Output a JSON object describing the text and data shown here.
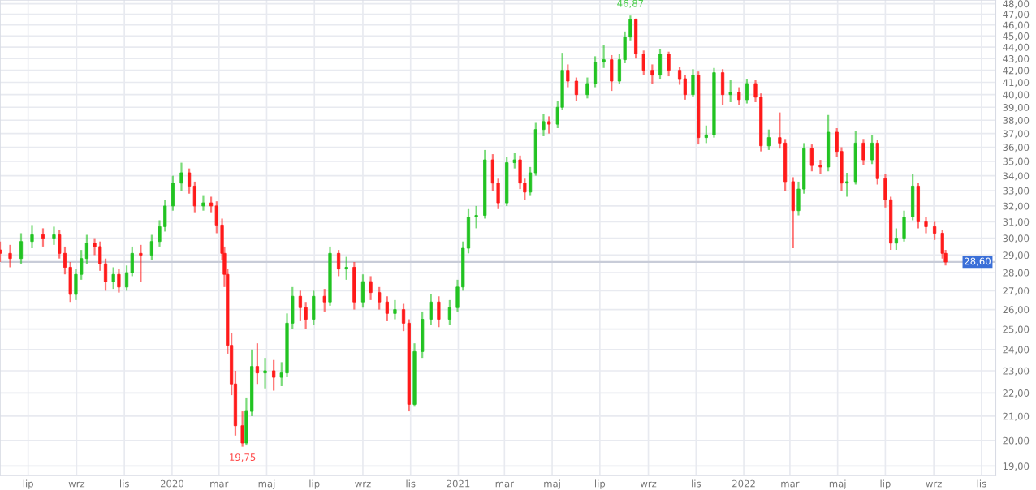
{
  "chart_data": {
    "type": "candlestick",
    "xlim": [
      "2019-05-26",
      "2022-11-19"
    ],
    "ylim": [
      18.65,
      48.36
    ],
    "log": true,
    "grid": true,
    "xticks": [
      {
        "value": "2019-07-01",
        "label": "lip"
      },
      {
        "value": "2019-09-01",
        "label": "wrz"
      },
      {
        "value": "2019-11-01",
        "label": "lis"
      },
      {
        "value": "2020-01-01",
        "label": "2020"
      },
      {
        "value": "2020-03-01",
        "label": "mar"
      },
      {
        "value": "2020-05-01",
        "label": "maj"
      },
      {
        "value": "2020-07-01",
        "label": "lip"
      },
      {
        "value": "2020-09-01",
        "label": "wrz"
      },
      {
        "value": "2020-11-01",
        "label": "lis"
      },
      {
        "value": "2021-01-01",
        "label": "2021"
      },
      {
        "value": "2021-03-01",
        "label": "mar"
      },
      {
        "value": "2021-05-01",
        "label": "maj"
      },
      {
        "value": "2021-07-01",
        "label": "lip"
      },
      {
        "value": "2021-09-01",
        "label": "wrz"
      },
      {
        "value": "2021-11-01",
        "label": "lis"
      },
      {
        "value": "2022-01-01",
        "label": "2022"
      },
      {
        "value": "2022-03-01",
        "label": "mar"
      },
      {
        "value": "2022-05-01",
        "label": "maj"
      },
      {
        "value": "2022-07-01",
        "label": "lip"
      },
      {
        "value": "2022-09-01",
        "label": "wrz"
      },
      {
        "value": "2022-11-01",
        "label": "lis"
      }
    ],
    "yticks": [
      {
        "value": 19,
        "label": "19,00"
      },
      {
        "value": 20,
        "label": "20,00"
      },
      {
        "value": 21,
        "label": "21,00"
      },
      {
        "value": 22,
        "label": "22,00"
      },
      {
        "value": 23,
        "label": "23,00"
      },
      {
        "value": 24,
        "label": "24,00"
      },
      {
        "value": 25,
        "label": "25,00"
      },
      {
        "value": 26,
        "label": "26,00"
      },
      {
        "value": 27,
        "label": "27,00"
      },
      {
        "value": 28,
        "label": "28,00"
      },
      {
        "value": 29,
        "label": "29,00"
      },
      {
        "value": 30,
        "label": "30,00"
      },
      {
        "value": 31,
        "label": "31,00"
      },
      {
        "value": 32,
        "label": "32,00"
      },
      {
        "value": 33,
        "label": "33,00"
      },
      {
        "value": 34,
        "label": "34,00"
      },
      {
        "value": 35,
        "label": "35,00"
      },
      {
        "value": 36,
        "label": "36,00"
      },
      {
        "value": 37,
        "label": "37,00"
      },
      {
        "value": 38,
        "label": "38,00"
      },
      {
        "value": 39,
        "label": "39,00"
      },
      {
        "value": 40,
        "label": "40,00"
      },
      {
        "value": 41,
        "label": "41,00"
      },
      {
        "value": 42,
        "label": "42,00"
      },
      {
        "value": 43,
        "label": "43,00"
      },
      {
        "value": 44,
        "label": "44,00"
      },
      {
        "value": 45,
        "label": "45,00"
      },
      {
        "value": 46,
        "label": "46,00"
      },
      {
        "value": 47,
        "label": "47,00"
      },
      {
        "value": 48,
        "label": "48,00"
      }
    ],
    "ref_lines": [
      {
        "axis": "y",
        "value": 28.6,
        "label": "28,60",
        "color": "#c8ccd8"
      }
    ],
    "annotations": [
      {
        "text": "46,87",
        "x": "2021-08-09",
        "y": 46.87
      },
      {
        "text": "19,75",
        "x": "2020-03-31",
        "y": 19.75
      }
    ],
    "series": [
      {
        "color": "#22c322",
        "x": [
          "2019-06-22",
          "2019-07-06",
          "2019-08-03",
          "2019-08-31",
          "2019-09-07",
          "2019-09-14",
          "2019-10-18",
          "2019-11-04",
          "2019-11-11",
          "2019-12-06",
          "2019-12-16",
          "2019-12-23",
          "2020-01-02",
          "2020-01-13",
          "2020-02-10",
          "2020-04-05",
          "2020-04-12",
          "2020-04-29",
          "2020-05-20",
          "2020-05-27",
          "2020-06-03",
          "2020-06-30",
          "2020-07-21",
          "2020-08-11",
          "2020-09-01",
          "2020-10-12",
          "2020-11-06",
          "2020-11-16",
          "2020-11-27",
          "2020-12-21",
          "2020-12-31",
          "2021-01-07",
          "2021-01-14",
          "2021-01-24",
          "2021-02-04",
          "2021-03-04",
          "2021-03-14",
          "2021-04-03",
          "2021-04-10",
          "2021-04-20",
          "2021-05-08",
          "2021-05-14",
          "2021-06-15",
          "2021-06-25",
          "2021-07-06",
          "2021-07-26",
          "2021-08-02",
          "2021-08-09",
          "2021-09-16",
          "2021-10-28",
          "2021-11-14",
          "2021-11-24",
          "2021-12-15",
          "2022-01-05",
          "2022-02-02",
          "2022-03-12",
          "2022-03-19",
          "2022-04-19",
          "2022-05-13",
          "2022-05-24",
          "2022-06-14",
          "2022-07-15",
          "2022-07-25",
          "2022-08-05"
        ],
        "ohlc": [
          [
            28.8,
            30.3,
            28.5,
            29.8
          ],
          [
            29.8,
            30.8,
            29.4,
            30.2
          ],
          [
            30.0,
            30.7,
            29.6,
            30.2
          ],
          [
            26.8,
            28.2,
            26.5,
            27.9
          ],
          [
            27.9,
            29.3,
            27.6,
            28.8
          ],
          [
            28.8,
            30.2,
            28.5,
            29.7
          ],
          [
            27.5,
            28.3,
            27.1,
            27.9
          ],
          [
            27.2,
            28.4,
            27.0,
            28.0
          ],
          [
            28.0,
            29.5,
            27.8,
            29.1
          ],
          [
            29.0,
            30.2,
            28.7,
            29.8
          ],
          [
            29.8,
            31.1,
            29.5,
            30.7
          ],
          [
            30.7,
            32.4,
            30.4,
            32.0
          ],
          [
            32.0,
            34.0,
            31.7,
            33.5
          ],
          [
            33.5,
            34.9,
            33.0,
            34.2
          ],
          [
            32.0,
            32.7,
            31.7,
            32.2
          ],
          [
            19.9,
            21.8,
            19.8,
            21.2
          ],
          [
            21.2,
            24.0,
            21.0,
            23.2
          ],
          [
            22.9,
            23.6,
            22.2,
            23.0
          ],
          [
            22.7,
            23.4,
            22.3,
            22.9
          ],
          [
            22.9,
            25.8,
            22.7,
            25.3
          ],
          [
            25.3,
            27.2,
            25.0,
            26.7
          ],
          [
            25.5,
            27.0,
            25.2,
            26.7
          ],
          [
            26.4,
            29.5,
            26.2,
            29.1
          ],
          [
            28.2,
            28.9,
            27.6,
            28.3
          ],
          [
            26.4,
            27.9,
            26.1,
            27.5
          ],
          [
            25.8,
            26.5,
            25.5,
            26.0
          ],
          [
            21.5,
            24.3,
            21.4,
            23.9
          ],
          [
            23.9,
            25.9,
            23.6,
            25.5
          ],
          [
            25.5,
            26.8,
            25.2,
            26.4
          ],
          [
            25.5,
            26.5,
            25.2,
            26.1
          ],
          [
            26.1,
            27.6,
            25.9,
            27.2
          ],
          [
            27.2,
            29.8,
            27.0,
            29.4
          ],
          [
            29.4,
            31.8,
            29.1,
            31.3
          ],
          [
            31.3,
            32.0,
            30.6,
            31.4
          ],
          [
            31.4,
            35.8,
            31.2,
            35.1
          ],
          [
            32.2,
            35.3,
            32.0,
            34.9
          ],
          [
            34.9,
            35.6,
            34.5,
            35.1
          ],
          [
            32.9,
            34.6,
            32.7,
            34.2
          ],
          [
            34.2,
            37.8,
            34.0,
            37.3
          ],
          [
            37.3,
            38.5,
            36.8,
            37.9
          ],
          [
            37.7,
            39.5,
            37.4,
            39.0
          ],
          [
            39.0,
            43.5,
            38.8,
            42.0
          ],
          [
            40.0,
            41.4,
            39.7,
            40.9
          ],
          [
            40.9,
            43.2,
            40.6,
            42.7
          ],
          [
            42.7,
            44.2,
            42.2,
            42.9
          ],
          [
            41.1,
            43.4,
            40.9,
            42.9
          ],
          [
            42.9,
            45.4,
            42.6,
            44.9
          ],
          [
            44.9,
            46.87,
            44.6,
            46.5
          ],
          [
            41.6,
            43.8,
            41.3,
            43.4
          ],
          [
            40.0,
            42.1,
            39.8,
            41.6
          ],
          [
            36.7,
            37.6,
            36.3,
            36.9
          ],
          [
            36.9,
            42.2,
            36.7,
            41.8
          ],
          [
            40.0,
            41.2,
            39.4,
            40.2
          ],
          [
            39.6,
            41.3,
            39.3,
            40.9
          ],
          [
            36.1,
            37.3,
            35.8,
            36.7
          ],
          [
            31.7,
            33.6,
            31.4,
            33.1
          ],
          [
            33.1,
            36.3,
            32.8,
            35.9
          ],
          [
            34.6,
            38.4,
            34.3,
            37.1
          ],
          [
            33.5,
            34.2,
            32.6,
            33.6
          ],
          [
            33.6,
            37.2,
            33.4,
            36.3
          ],
          [
            35.1,
            36.9,
            34.8,
            36.3
          ],
          [
            29.7,
            30.6,
            29.3,
            30.0
          ],
          [
            30.0,
            31.7,
            29.8,
            31.3
          ],
          [
            31.3,
            34.1,
            31.1,
            33.3
          ]
        ]
      },
      {
        "color": "#ff1a1a",
        "x": [
          "2019-05-26",
          "2019-06-08",
          "2019-07-20",
          "2019-08-10",
          "2019-08-17",
          "2019-08-24",
          "2019-09-24",
          "2019-10-01",
          "2019-10-08",
          "2019-10-25",
          "2019-11-22",
          "2020-01-23",
          "2020-01-30",
          "2020-02-20",
          "2020-02-27",
          "2020-03-05",
          "2020-03-08",
          "2020-03-12",
          "2020-03-17",
          "2020-03-22",
          "2020-03-31",
          "2020-04-19",
          "2020-05-10",
          "2020-06-13",
          "2020-06-20",
          "2020-07-14",
          "2020-08-01",
          "2020-08-21",
          "2020-09-11",
          "2020-09-22",
          "2020-10-02",
          "2020-10-23",
          "2020-10-30",
          "2020-12-07",
          "2021-02-14",
          "2021-02-21",
          "2021-03-21",
          "2021-03-27",
          "2021-04-27",
          "2021-05-21",
          "2021-06-01",
          "2021-07-16",
          "2021-08-16",
          "2021-08-26",
          "2021-09-06",
          "2021-09-27",
          "2021-10-11",
          "2021-10-18",
          "2021-11-04",
          "2021-12-05",
          "2021-12-26",
          "2022-01-16",
          "2022-01-23",
          "2022-02-16",
          "2022-02-23",
          "2022-03-05",
          "2022-03-29",
          "2022-04-09",
          "2022-04-30",
          "2022-05-06",
          "2022-06-03",
          "2022-06-21",
          "2022-07-01",
          "2022-07-08",
          "2022-08-12",
          "2022-08-22",
          "2022-09-02",
          "2022-09-12",
          "2022-09-16"
        ],
        "ohlc": [
          [
            29.3,
            29.8,
            28.6,
            29.1
          ],
          [
            29.1,
            29.6,
            28.3,
            28.8
          ],
          [
            30.2,
            30.6,
            29.5,
            30.0
          ],
          [
            30.2,
            30.5,
            28.8,
            29.1
          ],
          [
            29.1,
            29.5,
            27.9,
            28.3
          ],
          [
            28.3,
            28.6,
            26.4,
            26.8
          ],
          [
            29.7,
            30.0,
            29.0,
            29.5
          ],
          [
            29.5,
            29.8,
            28.1,
            28.5
          ],
          [
            28.5,
            28.8,
            27.0,
            27.5
          ],
          [
            27.9,
            28.2,
            26.9,
            27.2
          ],
          [
            29.1,
            29.6,
            27.5,
            29.0
          ],
          [
            34.2,
            34.5,
            32.8,
            33.3
          ],
          [
            33.3,
            33.6,
            31.6,
            32.0
          ],
          [
            32.2,
            32.6,
            31.6,
            32.0
          ],
          [
            32.0,
            32.3,
            30.3,
            30.8
          ],
          [
            30.8,
            31.2,
            28.7,
            29.1
          ],
          [
            29.1,
            29.5,
            27.2,
            27.9
          ],
          [
            27.9,
            28.2,
            23.8,
            24.2
          ],
          [
            24.2,
            24.8,
            21.9,
            22.4
          ],
          [
            22.4,
            23.0,
            20.2,
            20.6
          ],
          [
            20.6,
            21.2,
            19.75,
            19.9
          ],
          [
            23.2,
            24.3,
            22.4,
            22.9
          ],
          [
            23.0,
            23.5,
            22.1,
            22.7
          ],
          [
            26.7,
            27.0,
            25.4,
            26.1
          ],
          [
            26.1,
            26.4,
            25.0,
            25.5
          ],
          [
            26.7,
            27.1,
            25.9,
            26.4
          ],
          [
            29.1,
            29.3,
            27.8,
            28.2
          ],
          [
            28.3,
            28.6,
            26.0,
            26.4
          ],
          [
            27.5,
            27.8,
            26.5,
            26.9
          ],
          [
            26.9,
            27.2,
            26.0,
            26.4
          ],
          [
            26.4,
            26.7,
            25.4,
            25.8
          ],
          [
            26.0,
            26.3,
            24.9,
            25.3
          ],
          [
            25.3,
            25.5,
            21.2,
            21.5
          ],
          [
            26.4,
            26.7,
            25.1,
            25.5
          ],
          [
            35.1,
            35.5,
            33.0,
            33.5
          ],
          [
            33.5,
            33.8,
            31.8,
            32.2
          ],
          [
            35.1,
            35.4,
            33.1,
            33.5
          ],
          [
            33.5,
            33.8,
            32.4,
            32.9
          ],
          [
            37.9,
            38.3,
            37.0,
            37.7
          ],
          [
            42.0,
            42.5,
            40.6,
            41.1
          ],
          [
            41.1,
            41.4,
            39.5,
            40.0
          ],
          [
            42.9,
            43.3,
            40.3,
            41.1
          ],
          [
            46.5,
            46.6,
            43.0,
            43.4
          ],
          [
            43.4,
            43.7,
            41.6,
            42.0
          ],
          [
            42.0,
            42.5,
            40.9,
            41.6
          ],
          [
            43.4,
            43.6,
            41.5,
            42.0
          ],
          [
            42.0,
            42.3,
            40.8,
            41.3
          ],
          [
            41.3,
            41.6,
            39.6,
            40.0
          ],
          [
            41.6,
            41.9,
            36.2,
            36.7
          ],
          [
            41.8,
            42.1,
            39.2,
            40.0
          ],
          [
            40.2,
            40.6,
            39.2,
            39.6
          ],
          [
            40.9,
            41.2,
            39.4,
            39.8
          ],
          [
            39.8,
            40.1,
            35.7,
            36.1
          ],
          [
            36.7,
            38.6,
            35.9,
            36.3
          ],
          [
            36.3,
            36.6,
            33.0,
            33.6
          ],
          [
            33.6,
            33.9,
            29.4,
            31.7
          ],
          [
            35.9,
            36.2,
            34.3,
            34.7
          ],
          [
            34.7,
            35.1,
            34.1,
            34.6
          ],
          [
            37.1,
            37.4,
            35.3,
            35.7
          ],
          [
            35.7,
            36.0,
            33.0,
            33.5
          ],
          [
            36.3,
            36.6,
            34.7,
            35.1
          ],
          [
            36.3,
            36.5,
            33.4,
            33.8
          ],
          [
            33.8,
            34.1,
            31.9,
            32.4
          ],
          [
            32.4,
            32.6,
            29.3,
            29.7
          ],
          [
            33.3,
            33.5,
            30.6,
            31.0
          ],
          [
            31.0,
            31.3,
            30.3,
            30.7
          ],
          [
            30.7,
            31.0,
            29.9,
            30.3
          ],
          [
            30.3,
            30.5,
            28.8,
            29.1
          ],
          [
            29.1,
            29.3,
            28.4,
            28.6
          ]
        ]
      }
    ]
  }
}
